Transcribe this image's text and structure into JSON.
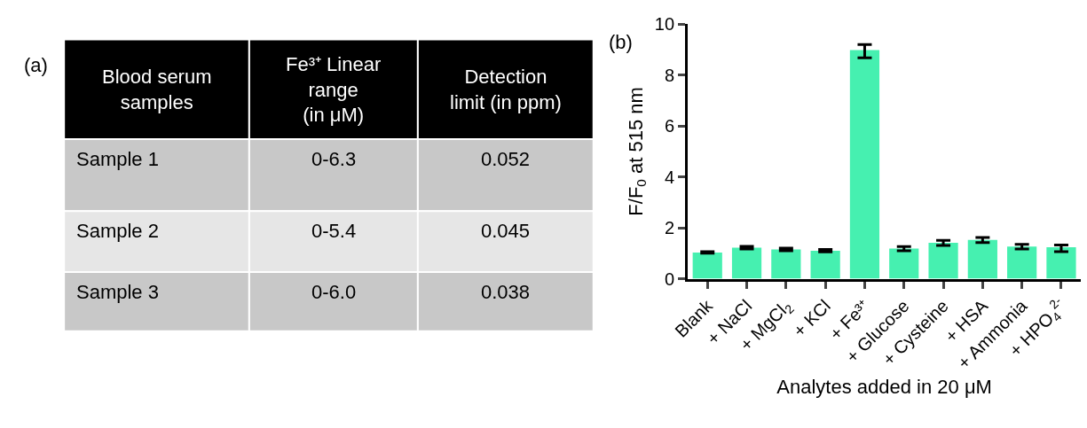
{
  "chart_data": [
    {
      "type": "other",
      "title": "(a)",
      "annotations": [
        "Blood serum\nsamples",
        "Fe³⁺ Linear\nrange\n(in μM)",
        "Detection\nlimit (in ppm)",
        "Sample 1",
        "0-6.3",
        "0.052",
        "Sample 2",
        "0-5.4",
        "0.045",
        "Sample 3",
        "0-6.0",
        "0.038"
      ]
    },
    {
      "type": "bar",
      "title": "(b)",
      "xlabel": "Analytes added in 20 μM",
      "ylabel": "F/F$_{0}$ at 515 nm",
      "categories": [
        "Blank",
        "+ NaCl",
        "+ MgCl$_{2}$",
        "+ KCl",
        "+ Fe³⁺",
        "+ Glucose",
        "+ Cysteine",
        "+ HSA",
        "+ Ammonia",
        "+ HPO$_{4}$$^{2-}$"
      ],
      "values": [
        1.03,
        1.22,
        1.15,
        1.1,
        8.98,
        1.18,
        1.41,
        1.52,
        1.26,
        1.24
      ],
      "errors": [
        0.03,
        0.05,
        0.05,
        0.05,
        [
          8.68,
          9.2
        ],
        0.08,
        0.1,
        0.1,
        0.09,
        [
          1.06,
          1.32
        ]
      ],
      "color": "#46f0b0",
      "ylim": [
        0,
        10
      ],
      "yticks": [
        0,
        2,
        4,
        6,
        8,
        10
      ]
    }
  ]
}
